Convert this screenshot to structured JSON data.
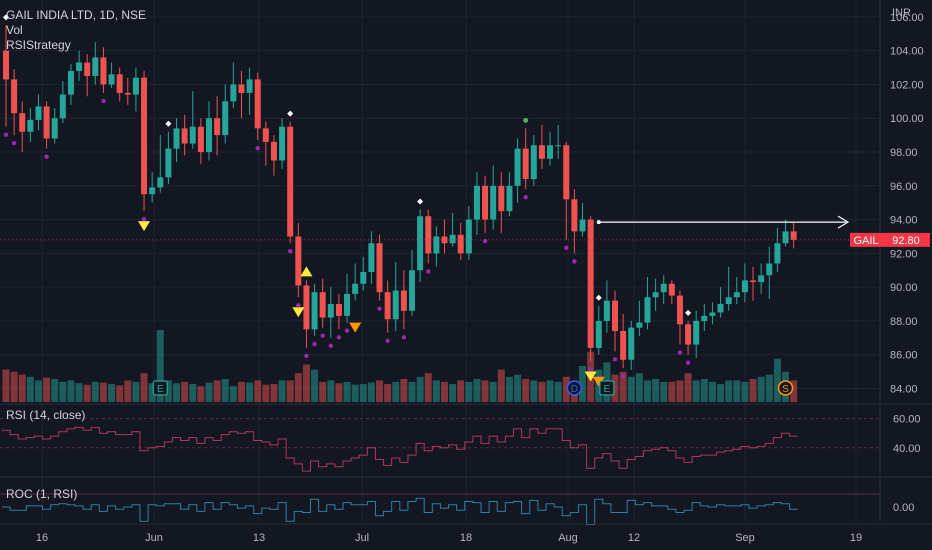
{
  "header": {
    "title": "GAIL INDIA LTD, 1D, NSE",
    "indicator_vol": "Vol",
    "indicator_strategy": "RSIStrategy",
    "currency": "INR"
  },
  "rsi_pane": {
    "label": "RSI (14, close)"
  },
  "roc_pane": {
    "label": "ROC (1, RSI)"
  },
  "colors": {
    "background": "#131722",
    "up": "#26a69a",
    "down": "#ef5350",
    "marker_buy": "#ffeb3b",
    "marker_sell": "#ff9800",
    "dot": "#9c27b0",
    "rsi_line": "#b2365a",
    "roc_line": "#2d7fa6",
    "price_tag": "#f23645"
  },
  "chart_data": {
    "type": "candlestick",
    "symbol_tag": "GAIL",
    "last_price": "92.80",
    "price_axis": {
      "ticks": [
        "106.00",
        "104.00",
        "102.00",
        "100.00",
        "98.00",
        "96.00",
        "94.00",
        "92.00",
        "90.00",
        "88.00",
        "86.00",
        "84.00"
      ],
      "range": [
        83.2,
        107
      ]
    },
    "time_axis": {
      "ticks": [
        "16",
        "Jun",
        "13",
        "Jul",
        "18",
        "Aug",
        "12",
        "Sep",
        "19"
      ]
    },
    "candles": [
      [
        104.0,
        102.3,
        105.5,
        99.5
      ],
      [
        102.3,
        100.3,
        102.9,
        99.0
      ],
      [
        100.3,
        99.2,
        101.0,
        98.0
      ],
      [
        99.2,
        99.9,
        100.6,
        98.6
      ],
      [
        99.9,
        100.7,
        101.4,
        99.3
      ],
      [
        100.7,
        98.8,
        101.0,
        98.2
      ],
      [
        98.8,
        100.0,
        100.6,
        98.5
      ],
      [
        100.0,
        101.4,
        102.2,
        99.7
      ],
      [
        101.4,
        102.8,
        103.2,
        100.8
      ],
      [
        102.8,
        103.3,
        104.0,
        102.2
      ],
      [
        103.3,
        102.5,
        103.8,
        101.3
      ],
      [
        102.5,
        103.6,
        104.5,
        102.0
      ],
      [
        103.6,
        102.0,
        104.2,
        101.5
      ],
      [
        102.0,
        102.6,
        103.3,
        101.8
      ],
      [
        102.6,
        101.5,
        103.0,
        101.0
      ],
      [
        101.5,
        101.4,
        102.4,
        100.8
      ],
      [
        101.4,
        102.4,
        103.0,
        100.4
      ],
      [
        102.4,
        95.5,
        102.8,
        94.5
      ],
      [
        95.5,
        95.9,
        96.8,
        95.0
      ],
      [
        95.9,
        96.5,
        99.0,
        95.6
      ],
      [
        96.5,
        98.2,
        99.2,
        96.1
      ],
      [
        98.2,
        99.4,
        100.0,
        97.4
      ],
      [
        99.4,
        98.5,
        100.2,
        97.8
      ],
      [
        98.5,
        99.5,
        101.6,
        98.2
      ],
      [
        99.5,
        98.0,
        100.0,
        97.3
      ],
      [
        98.0,
        100.0,
        101.0,
        97.5
      ],
      [
        100.0,
        99.0,
        101.3,
        97.8
      ],
      [
        99.0,
        101.0,
        102.0,
        98.5
      ],
      [
        101.0,
        102.0,
        103.3,
        100.6
      ],
      [
        102.0,
        101.5,
        102.8,
        100.0
      ],
      [
        101.5,
        102.3,
        103.0,
        100.2
      ],
      [
        102.3,
        99.4,
        102.7,
        98.7
      ],
      [
        99.4,
        98.6,
        99.8,
        97.2
      ],
      [
        98.6,
        97.5,
        99.0,
        96.6
      ],
      [
        97.5,
        99.5,
        100.0,
        97.0
      ],
      [
        99.5,
        93.0,
        99.8,
        92.6
      ],
      [
        93.0,
        90.1,
        93.8,
        89.4
      ],
      [
        90.1,
        87.5,
        90.4,
        86.4
      ],
      [
        87.5,
        89.7,
        90.2,
        87.1
      ],
      [
        89.7,
        88.2,
        90.5,
        87.6
      ],
      [
        88.2,
        89.0,
        90.0,
        87.0
      ],
      [
        89.0,
        88.3,
        89.6,
        87.5
      ],
      [
        88.3,
        89.6,
        90.8,
        87.9
      ],
      [
        89.6,
        90.2,
        91.4,
        89.2
      ],
      [
        90.2,
        90.9,
        91.8,
        89.8
      ],
      [
        90.9,
        92.6,
        93.3,
        90.2
      ],
      [
        92.6,
        89.7,
        93.1,
        89.2
      ],
      [
        89.7,
        88.1,
        90.4,
        87.3
      ],
      [
        88.1,
        89.8,
        91.5,
        87.4
      ],
      [
        89.8,
        88.6,
        91.0,
        87.5
      ],
      [
        88.6,
        91.0,
        92.2,
        88.3
      ],
      [
        91.0,
        94.2,
        94.6,
        90.3
      ],
      [
        94.2,
        92.0,
        94.6,
        91.4
      ],
      [
        92.0,
        93.0,
        93.6,
        91.2
      ],
      [
        93.0,
        92.6,
        94.0,
        92.0
      ],
      [
        92.6,
        93.1,
        94.4,
        92.4
      ],
      [
        93.1,
        92.0,
        93.8,
        91.6
      ],
      [
        92.0,
        94.0,
        94.8,
        91.6
      ],
      [
        94.0,
        96.0,
        96.8,
        93.1
      ],
      [
        96.0,
        94.0,
        96.6,
        93.2
      ],
      [
        94.0,
        96.0,
        97.2,
        93.4
      ],
      [
        96.0,
        94.5,
        96.8,
        93.2
      ],
      [
        94.5,
        96.0,
        96.8,
        94.2
      ],
      [
        96.0,
        98.2,
        98.8,
        95.0
      ],
      [
        98.2,
        96.4,
        99.4,
        95.8
      ],
      [
        96.4,
        98.4,
        99.0,
        96.0
      ],
      [
        98.4,
        97.6,
        99.6,
        97.0
      ],
      [
        97.6,
        98.4,
        99.2,
        97.2
      ],
      [
        98.4,
        98.4,
        99.6,
        97.6
      ],
      [
        98.4,
        95.2,
        98.6,
        92.8
      ],
      [
        95.2,
        93.3,
        95.8,
        92.0
      ],
      [
        93.3,
        94.0,
        95.0,
        93.0
      ],
      [
        94.0,
        86.4,
        94.2,
        85.6
      ],
      [
        86.4,
        88.0,
        88.9,
        86.0
      ],
      [
        88.0,
        89.2,
        90.4,
        87.3
      ],
      [
        89.2,
        87.4,
        89.8,
        86.2
      ],
      [
        87.4,
        85.7,
        88.4,
        85.2
      ],
      [
        85.7,
        87.6,
        88.0,
        85.1
      ],
      [
        87.6,
        87.9,
        89.2,
        87.1
      ],
      [
        87.9,
        89.4,
        90.6,
        87.5
      ],
      [
        89.4,
        89.7,
        90.5,
        88.6
      ],
      [
        89.7,
        90.2,
        90.7,
        89.0
      ],
      [
        90.2,
        89.5,
        90.4,
        89.0
      ],
      [
        89.5,
        87.8,
        89.8,
        86.6
      ],
      [
        87.8,
        86.6,
        88.0,
        86.0
      ],
      [
        86.6,
        88.0,
        88.6,
        85.8
      ],
      [
        88.0,
        88.3,
        89.0,
        87.4
      ],
      [
        88.3,
        88.5,
        89.1,
        87.8
      ],
      [
        88.5,
        89.0,
        90.0,
        88.2
      ],
      [
        89.0,
        89.4,
        91.2,
        88.6
      ],
      [
        89.4,
        89.7,
        90.6,
        89.0
      ],
      [
        89.7,
        90.4,
        91.4,
        89.1
      ],
      [
        90.4,
        90.3,
        91.2,
        89.2
      ],
      [
        90.3,
        90.7,
        91.4,
        89.6
      ],
      [
        90.7,
        91.4,
        92.4,
        89.3
      ],
      [
        91.4,
        92.6,
        93.5,
        90.9
      ],
      [
        92.6,
        93.3,
        94.0,
        92.4
      ],
      [
        93.3,
        92.8,
        93.8,
        92.3
      ]
    ],
    "volume": [
      0.45,
      0.42,
      0.38,
      0.35,
      0.3,
      0.34,
      0.32,
      0.28,
      0.3,
      0.26,
      0.24,
      0.28,
      0.27,
      0.25,
      0.23,
      0.3,
      0.28,
      0.4,
      0.26,
      1.0,
      0.3,
      0.26,
      0.28,
      0.25,
      0.22,
      0.27,
      0.3,
      0.32,
      0.22,
      0.28,
      0.27,
      0.3,
      0.24,
      0.25,
      0.3,
      0.3,
      0.4,
      0.52,
      0.45,
      0.28,
      0.3,
      0.26,
      0.28,
      0.24,
      0.25,
      0.27,
      0.3,
      0.25,
      0.28,
      0.32,
      0.28,
      0.35,
      0.4,
      0.3,
      0.28,
      0.25,
      0.3,
      0.28,
      0.32,
      0.3,
      0.28,
      0.45,
      0.35,
      0.38,
      0.32,
      0.3,
      0.28,
      0.3,
      0.28,
      0.35,
      0.25,
      0.5,
      0.7,
      0.45,
      0.55,
      0.38,
      0.42,
      0.35,
      0.4,
      0.3,
      0.32,
      0.28,
      0.28,
      0.3,
      0.4,
      0.3,
      0.32,
      0.28,
      0.25,
      0.3,
      0.3,
      0.28,
      0.32,
      0.35,
      0.38,
      0.6,
      0.42,
      0.3
    ],
    "rsi": [
      52,
      49,
      46,
      47,
      48,
      46,
      48,
      51,
      53,
      54,
      52,
      54,
      50,
      51,
      49,
      49,
      51,
      38,
      40,
      41,
      44,
      47,
      45,
      47,
      43,
      47,
      45,
      49,
      51,
      50,
      51,
      45,
      44,
      42,
      46,
      33,
      29,
      24,
      31,
      27,
      29,
      27,
      31,
      33,
      35,
      40,
      32,
      28,
      33,
      30,
      35,
      43,
      38,
      41,
      40,
      42,
      39,
      44,
      48,
      43,
      48,
      44,
      48,
      53,
      47,
      53,
      50,
      53,
      53,
      45,
      40,
      42,
      26,
      33,
      36,
      31,
      26,
      32,
      34,
      38,
      39,
      40,
      38,
      33,
      30,
      34,
      35,
      35,
      37,
      38,
      39,
      41,
      40,
      41,
      43,
      47,
      50,
      48
    ],
    "rsi_ticks": [
      "60.00",
      "40.00"
    ],
    "roc_ticks": [
      "0.00"
    ],
    "markers": {
      "sell_white_diamond_at": [
        0,
        20,
        35,
        51,
        73,
        84
      ],
      "buy_triangle_down_at": [
        17,
        36,
        72
      ],
      "yellow_up_triangle_at": [
        37
      ],
      "orange_down_triangle_at": [
        43,
        73
      ],
      "green_dot_at": [
        64
      ]
    },
    "event_badges": [
      {
        "index": 19,
        "text": "E"
      },
      {
        "index": 70,
        "text": "D"
      },
      {
        "index": 74,
        "text": "E"
      },
      {
        "index": 96,
        "text": "S"
      }
    ],
    "horizontal_ray": {
      "from_index": 73,
      "price": 93.85
    }
  }
}
